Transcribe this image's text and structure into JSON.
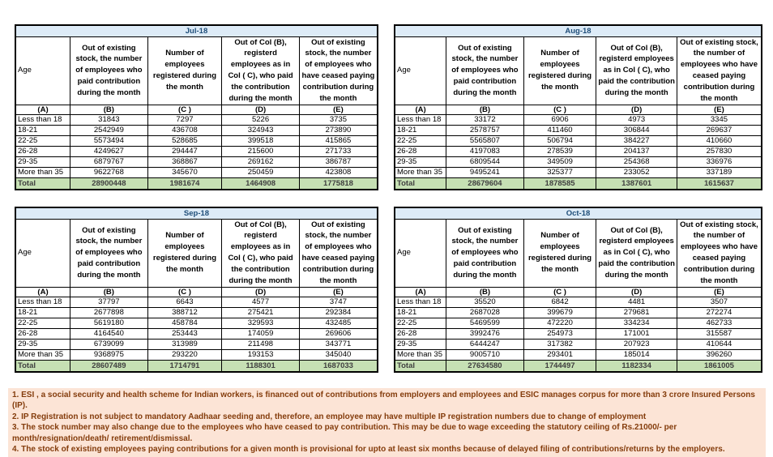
{
  "shared": {
    "age_header": "Age",
    "col_b": "Out of existing stock, the number of employees who paid contribution during the month",
    "col_c": "Number of employees registered during the month",
    "col_d": "Out of Col (B), registerd employees as in Col ( C), who paid the contribution during the month",
    "col_e": "Out of existing stock, the number of employees who have ceased paying contribution during the month",
    "letters": [
      "(A)",
      "(B)",
      "(C )",
      "(D)",
      "(E)"
    ],
    "total_label": "Total"
  },
  "tables": [
    {
      "title": "Jul-18",
      "rows": [
        {
          "age": "Less than 18",
          "values": [
            31843,
            7297,
            5226,
            3735
          ]
        },
        {
          "age": "18-21",
          "values": [
            2542949,
            436708,
            324943,
            273890
          ]
        },
        {
          "age": "22-25",
          "values": [
            5573494,
            528685,
            399518,
            415865
          ]
        },
        {
          "age": "26-28",
          "values": [
            4249627,
            294447,
            215600,
            271733
          ]
        },
        {
          "age": "29-35",
          "values": [
            6879767,
            368867,
            269162,
            386787
          ]
        },
        {
          "age": "More than 35",
          "values": [
            9622768,
            345670,
            250459,
            423808
          ]
        }
      ],
      "total": [
        28900448,
        1981674,
        1464908,
        1775818
      ]
    },
    {
      "title": "Aug-18",
      "rows": [
        {
          "age": "Less than 18",
          "values": [
            33172,
            6906,
            4973,
            3345
          ]
        },
        {
          "age": "18-21",
          "values": [
            2578757,
            411460,
            306844,
            269637
          ]
        },
        {
          "age": "22-25",
          "values": [
            5565807,
            506794,
            384227,
            410660
          ]
        },
        {
          "age": "26-28",
          "values": [
            4197083,
            278539,
            204137,
            257830
          ]
        },
        {
          "age": "29-35",
          "values": [
            6809544,
            349509,
            254368,
            336976
          ]
        },
        {
          "age": "More than 35",
          "values": [
            9495241,
            325377,
            233052,
            337189
          ]
        }
      ],
      "total": [
        28679604,
        1878585,
        1387601,
        1615637
      ]
    },
    {
      "title": "Sep-18",
      "rows": [
        {
          "age": "Less than 18",
          "values": [
            37797,
            6643,
            4577,
            3747
          ]
        },
        {
          "age": "18-21",
          "values": [
            2677898,
            388712,
            275421,
            292384
          ]
        },
        {
          "age": "22-25",
          "values": [
            5619180,
            458784,
            329593,
            432485
          ]
        },
        {
          "age": "26-28",
          "values": [
            4164540,
            253443,
            174059,
            269606
          ]
        },
        {
          "age": "29-35",
          "values": [
            6739099,
            313989,
            211498,
            343771
          ]
        },
        {
          "age": "More than 35",
          "values": [
            9368975,
            293220,
            193153,
            345040
          ]
        }
      ],
      "total": [
        28607489,
        1714791,
        1188301,
        1687033
      ]
    },
    {
      "title": "Oct-18",
      "rows": [
        {
          "age": "Less than 18",
          "values": [
            35520,
            6842,
            4481,
            3507
          ]
        },
        {
          "age": "18-21",
          "values": [
            2687028,
            399679,
            279681,
            272274
          ]
        },
        {
          "age": "22-25",
          "values": [
            5469599,
            472220,
            334234,
            462733
          ]
        },
        {
          "age": "26-28",
          "values": [
            3992476,
            254973,
            171001,
            315587
          ]
        },
        {
          "age": "29-35",
          "values": [
            6444247,
            317382,
            207923,
            410644
          ]
        },
        {
          "age": "More than 35",
          "values": [
            9005710,
            293401,
            185014,
            396260
          ]
        }
      ],
      "total": [
        27634580,
        1744497,
        1182334,
        1861005
      ]
    }
  ],
  "footnotes": [
    "1. ESI , a social security and health scheme for Indian workers, is financed out of contributions from employers and employees and ESIC manages corpus for more than 3 crore Insured Persons (IP).",
    "2. IP Registration is not subject to mandatory Aadhaar seeding and, therefore, an employee may have multiple IP registration numbers due to change of employment",
    "3. The stock number may also change due to the employees who have ceased to pay contribution. This may be due to wage exceeding the statutory ceiling of Rs.21000/- per month/resignation/death/ retirement/dismissal.",
    "4. The stock of existing employees paying contributions for a given month is provisional for upto at least six months because of delayed filing of contributions/returns by the employers."
  ],
  "colors": {
    "month_band_bg": "#DDEBF7",
    "month_band_text": "#1F4E79",
    "total_row_bg": "#C6E0B4",
    "total_row_text": "#404040",
    "footnote_bg": "#FCE4D6",
    "footnote_text": "#843C0C",
    "table_border": "#000000"
  }
}
